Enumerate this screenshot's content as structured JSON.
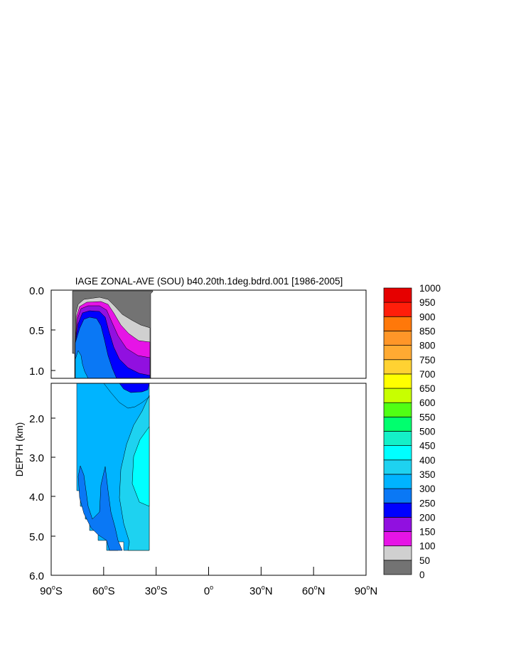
{
  "chart_data": {
    "type": "filled-contour",
    "title": "IAGE ZONAL-AVE (SOU) b40.20th.1deg.bdrd.001 [1986-2005]",
    "ylabel": "DEPTH (km)",
    "xlabel": "",
    "xlim": [
      -90,
      90
    ],
    "ylim_upper_panel": [
      0.0,
      1.15
    ],
    "ylim_lower_panel": [
      1.15,
      6.0
    ],
    "upper_yticks": [
      "0.0",
      "0.5",
      "1.0"
    ],
    "lower_yticks": [
      "2.0",
      "3.0",
      "4.0",
      "5.0",
      "6.0"
    ],
    "xticks": [
      {
        "deg": "90",
        "hemi": "S"
      },
      {
        "deg": "60",
        "hemi": "S"
      },
      {
        "deg": "30",
        "hemi": "S"
      },
      {
        "deg": "0",
        "hemi": ""
      },
      {
        "deg": "30",
        "hemi": "N"
      },
      {
        "deg": "60",
        "hemi": "N"
      },
      {
        "deg": "90",
        "hemi": "N"
      }
    ],
    "data_extent_lat": [
      -78,
      -34
    ],
    "colorbar": {
      "levels": [
        "0",
        "50",
        "100",
        "150",
        "200",
        "250",
        "300",
        "350",
        "400",
        "450",
        "500",
        "550",
        "600",
        "650",
        "700",
        "750",
        "800",
        "850",
        "900",
        "950",
        "1000"
      ],
      "colors": [
        "#737373",
        "#d0d0d0",
        "#e614e6",
        "#9110e0",
        "#0000ff",
        "#0a78f5",
        "#00b4ff",
        "#1ed2f0",
        "#00ffff",
        "#14f0c8",
        "#00ff6e",
        "#50ff14",
        "#c8ff00",
        "#ffff00",
        "#ffd232",
        "#ffaa32",
        "#ff9628",
        "#ff780a",
        "#ff1e0a",
        "#e60000"
      ]
    },
    "regions": [
      {
        "name": "upper-age-0-50",
        "level": "0-50",
        "color": "#737373"
      },
      {
        "name": "upper-age-50-100",
        "level": "50-100",
        "color": "#d0d0d0"
      },
      {
        "name": "upper-age-100-150",
        "level": "100-150",
        "color": "#e614e6"
      },
      {
        "name": "upper-age-150-200",
        "level": "150-200",
        "color": "#9110e0"
      },
      {
        "name": "upper-age-200-250",
        "level": "200-250",
        "color": "#0000ff"
      },
      {
        "name": "upper-age-250-300",
        "level": "250-300",
        "color": "#0a78f5"
      },
      {
        "name": "upper-age-300-350",
        "level": "300-350",
        "color": "#00b4ff"
      },
      {
        "name": "lower-age-300-350",
        "level": "300-350",
        "color": "#00b4ff"
      },
      {
        "name": "lower-age-350-400",
        "level": "350-400",
        "color": "#1ed2f0"
      },
      {
        "name": "lower-age-400-450",
        "level": "400-450",
        "color": "#00ffff"
      },
      {
        "name": "lower-age-250-300",
        "level": "250-300",
        "color": "#0a78f5"
      },
      {
        "name": "lower-age-200-250",
        "level": "200-250",
        "color": "#0000ff"
      }
    ]
  }
}
